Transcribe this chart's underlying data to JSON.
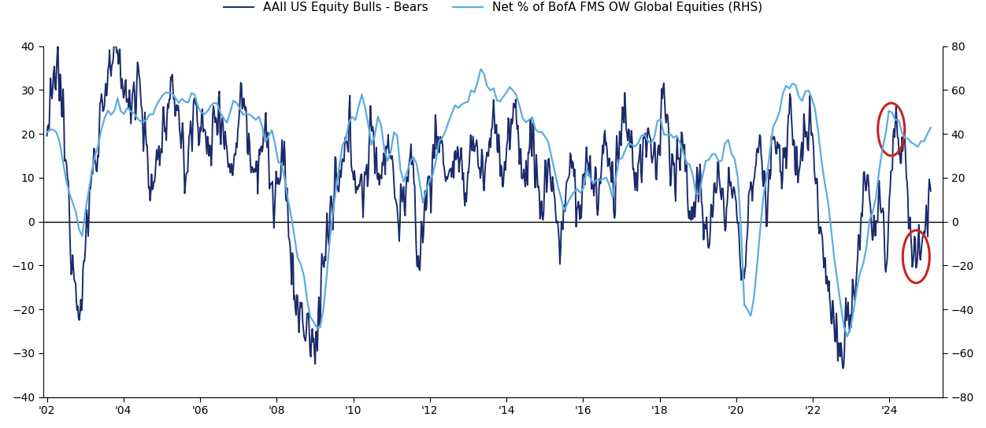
{
  "legend1": "AAII US Equity Bulls - Bears",
  "legend2": "Net % of BofA FMS OW Global Equities (RHS)",
  "color1": "#1b2a6b",
  "color2": "#5aade0",
  "ylim_left": [
    -40,
    40
  ],
  "ylim_right": [
    -80,
    80
  ],
  "yticks_left": [
    -40,
    -30,
    -20,
    -10,
    0,
    10,
    20,
    30,
    40
  ],
  "yticks_right": [
    -80,
    -60,
    -40,
    -20,
    0,
    20,
    40,
    60,
    80
  ],
  "xtick_labels": [
    "'02",
    "'04",
    "'06",
    "'08",
    "'10",
    "'12",
    "'14",
    "'16",
    "'18",
    "'20",
    "'22",
    "'24"
  ],
  "xtick_positions": [
    2002,
    2004,
    2006,
    2008,
    2010,
    2012,
    2014,
    2016,
    2018,
    2020,
    2022,
    2024
  ],
  "xlim": [
    2001.9,
    2025.4
  ],
  "circle_color": "#cc2222",
  "linewidth1": 1.4,
  "linewidth2": 1.6
}
